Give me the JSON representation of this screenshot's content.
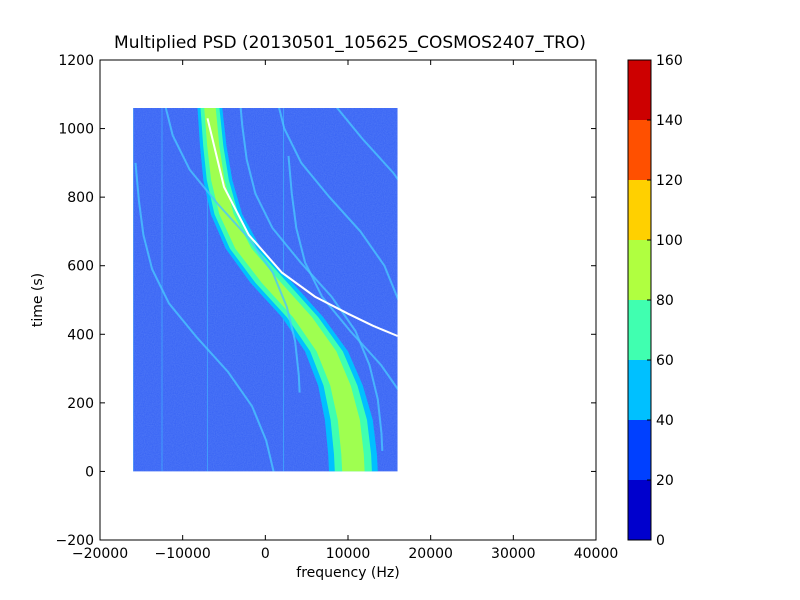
{
  "chart_data": {
    "type": "heatmap",
    "title": "Multiplied PSD (20130501_105625_COSMOS2407_TRO)",
    "xlabel": "frequency (Hz)",
    "ylabel": "time (s)",
    "xlim": [
      -20000,
      40000
    ],
    "ylim": [
      -200,
      1200
    ],
    "xticks": [
      -20000,
      -10000,
      0,
      10000,
      20000,
      30000,
      40000
    ],
    "xtick_labels": [
      "−20000",
      "−10000",
      "0",
      "10000",
      "20000",
      "30000",
      "40000"
    ],
    "yticks": [
      -200,
      0,
      200,
      400,
      600,
      800,
      1000,
      1200
    ],
    "ytick_labels": [
      "−200",
      "0",
      "200",
      "400",
      "600",
      "800",
      "1000",
      "1200"
    ],
    "data_extent": {
      "x": [
        -16000,
        16000
      ],
      "y": [
        0,
        1060
      ]
    },
    "main_track": [
      {
        "t": 1060,
        "f_left": -8200,
        "f_right": -5200
      },
      {
        "t": 950,
        "f_left": -7900,
        "f_right": -4700
      },
      {
        "t": 850,
        "f_left": -7500,
        "f_right": -4000
      },
      {
        "t": 750,
        "f_left": -6600,
        "f_right": -2800
      },
      {
        "t": 650,
        "f_left": -4800,
        "f_right": -500
      },
      {
        "t": 550,
        "f_left": -1800,
        "f_right": 3300
      },
      {
        "t": 450,
        "f_left": 2000,
        "f_right": 7000
      },
      {
        "t": 350,
        "f_left": 4800,
        "f_right": 10000
      },
      {
        "t": 250,
        "f_left": 6400,
        "f_right": 11800
      },
      {
        "t": 150,
        "f_left": 7200,
        "f_right": 13000
      },
      {
        "t": 50,
        "f_left": 7600,
        "f_right": 13500
      },
      {
        "t": 0,
        "f_left": 7700,
        "f_right": 13600
      }
    ],
    "predicted_curve": [
      {
        "f": -7000,
        "t": 1030
      },
      {
        "f": -5000,
        "t": 830
      },
      {
        "f": -2000,
        "t": 690
      },
      {
        "f": 2000,
        "t": 580
      },
      {
        "f": 6000,
        "t": 510
      },
      {
        "f": 10000,
        "t": 460
      },
      {
        "f": 13000,
        "t": 425
      },
      {
        "f": 16000,
        "t": 395
      }
    ],
    "colorbar": {
      "range": [
        0,
        160
      ],
      "ticks": [
        "0",
        "20",
        "40",
        "60",
        "80",
        "100",
        "120",
        "140",
        "160"
      ],
      "colors": [
        "#0000cd",
        "#0040ff",
        "#00c0ff",
        "#40ffb0",
        "#b0ff40",
        "#ffd000",
        "#ff5000",
        "#cd0000"
      ]
    }
  }
}
